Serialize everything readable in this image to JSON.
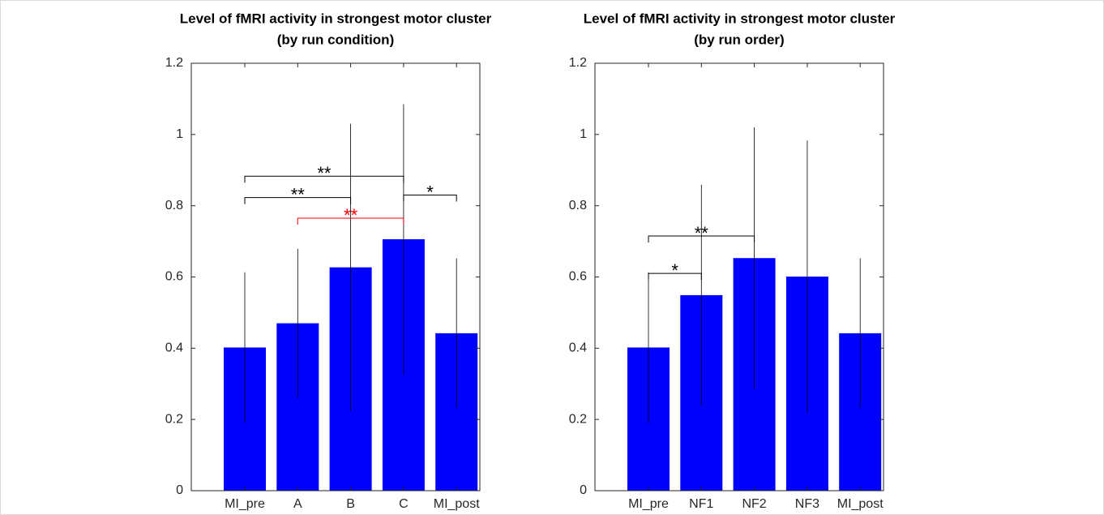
{
  "charts": [
    {
      "type": "bar",
      "title": "Level of fMRI activity in strongest motor cluster",
      "subtitle": "(by run condition)",
      "categories": [
        "MI_pre",
        "A",
        "B",
        "C",
        "MI_post"
      ],
      "values": [
        0.402,
        0.47,
        0.627,
        0.706,
        0.442
      ],
      "errors": [
        0.211,
        0.209,
        0.403,
        0.379,
        0.21
      ],
      "color": "#0000ff",
      "ylim": [
        0,
        1.2
      ],
      "yticks": [
        0,
        0.2,
        0.4,
        0.6,
        0.8,
        1,
        1.2
      ],
      "annotations": [
        {
          "text": "**",
          "from": "MI_pre",
          "to": "C",
          "y": 0.883,
          "color": "#000000"
        },
        {
          "text": "**",
          "from": "MI_pre",
          "to": "B",
          "y": 0.823,
          "color": "#000000"
        },
        {
          "text": "**",
          "from": "A",
          "to": "C",
          "y": 0.765,
          "color": "#ff0000"
        },
        {
          "text": "*",
          "from": "C",
          "to": "MI_post",
          "y": 0.83,
          "color": "#000000"
        }
      ]
    },
    {
      "type": "bar",
      "title": "Level of fMRI activity in strongest motor cluster",
      "subtitle": "(by run order)",
      "categories": [
        "MI_pre",
        "NF1",
        "NF2",
        "NF3",
        "MI_post"
      ],
      "values": [
        0.402,
        0.549,
        0.653,
        0.601,
        0.442
      ],
      "errors": [
        0.211,
        0.31,
        0.367,
        0.382,
        0.21
      ],
      "color": "#0000ff",
      "ylim": [
        0,
        1.2
      ],
      "yticks": [
        0,
        0.2,
        0.4,
        0.6,
        0.8,
        1,
        1.2
      ],
      "annotations": [
        {
          "text": "**",
          "from": "MI_pre",
          "to": "NF2",
          "y": 0.715,
          "color": "#000000"
        },
        {
          "text": "*",
          "from": "MI_pre",
          "to": "NF1",
          "y": 0.61,
          "color": "#000000"
        }
      ]
    }
  ]
}
